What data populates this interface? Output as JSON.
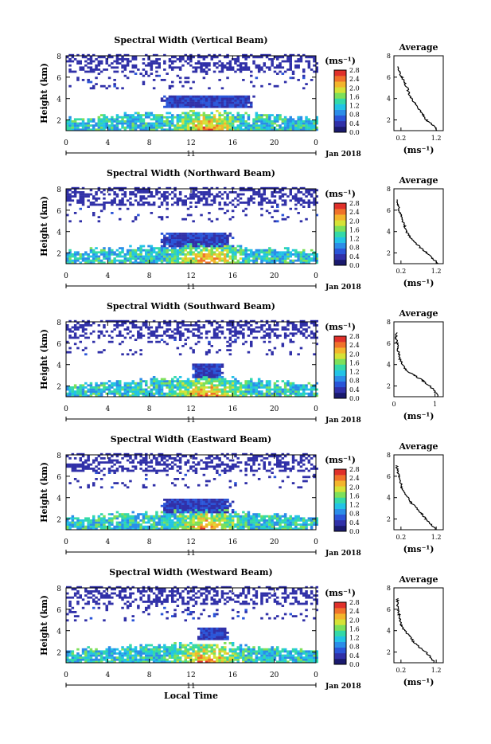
{
  "page": {
    "xlabel_bottom": "Local Time",
    "date_label": "Jan 2018",
    "day_label": "11",
    "ylabel": "Height (km)",
    "colorbar_unit": "(ms⁻¹)",
    "avg_title": "Average",
    "avg_unit": "(ms⁻¹)"
  },
  "colors": {
    "scale": [
      "#1a1a6e",
      "#3030a8",
      "#2a55d8",
      "#2b8de8",
      "#22c3e6",
      "#34d9a8",
      "#7de05a",
      "#d6e236",
      "#f3b52c",
      "#f0722a",
      "#e0302a"
    ],
    "data_dark_blue": "#3a3fb0"
  },
  "chart_data": [
    {
      "type": "heatmap",
      "title": "Spectral Width (Vertical Beam)",
      "ylabel": "Height (km)",
      "xticks": [
        "0",
        "4",
        "8",
        "12",
        "16",
        "20",
        "0"
      ],
      "yticks": [
        "2",
        "4",
        "6",
        "8"
      ],
      "xlim": [
        0,
        24
      ],
      "ylim": [
        1,
        8
      ],
      "colorbar": {
        "ticks": [
          "2.8",
          "2.4",
          "2.0",
          "1.6",
          "1.2",
          "0.8",
          "0.4",
          "0.0"
        ],
        "range": [
          0,
          2.8
        ]
      },
      "cloud_band": {
        "x": [
          9,
          18
        ],
        "y": [
          3.0,
          4.2
        ]
      },
      "profile": {
        "title": "Average",
        "xticks": [
          "0.2",
          "1.2"
        ],
        "yticks": [
          "2",
          "4",
          "6",
          "8"
        ],
        "xlim": [
          0,
          1.4
        ],
        "height": [
          1.0,
          1.5,
          2.0,
          2.5,
          3.0,
          3.5,
          4.0,
          4.5,
          5.0,
          5.5,
          6.0,
          6.5,
          7.0
        ],
        "value": [
          1.22,
          1.1,
          0.92,
          0.82,
          0.7,
          0.6,
          0.5,
          0.42,
          0.38,
          0.3,
          0.22,
          0.15,
          0.1
        ]
      }
    },
    {
      "type": "heatmap",
      "title": "Spectral Width (Northward Beam)",
      "ylabel": "Height (km)",
      "xticks": [
        "0",
        "4",
        "8",
        "12",
        "16",
        "20",
        "0"
      ],
      "yticks": [
        "2",
        "4",
        "6",
        "8"
      ],
      "xlim": [
        0,
        24
      ],
      "ylim": [
        1,
        8
      ],
      "colorbar": {
        "ticks": [
          "2.8",
          "2.4",
          "2.0",
          "1.6",
          "1.2",
          "0.8",
          "0.4",
          "0.0"
        ],
        "range": [
          0,
          2.8
        ]
      },
      "cloud_band": {
        "x": [
          9,
          16
        ],
        "y": [
          2.5,
          3.8
        ]
      },
      "profile": {
        "title": "Average",
        "xticks": [
          "0.2",
          "1.2"
        ],
        "yticks": [
          "2",
          "4",
          "6",
          "8"
        ],
        "xlim": [
          0,
          1.4
        ],
        "height": [
          1.0,
          1.5,
          2.0,
          2.5,
          3.0,
          3.5,
          4.0,
          4.5,
          5.0,
          5.5,
          6.0,
          6.5,
          7.0
        ],
        "value": [
          1.25,
          1.1,
          0.95,
          0.75,
          0.6,
          0.45,
          0.35,
          0.3,
          0.25,
          0.2,
          0.15,
          0.1,
          0.08
        ]
      }
    },
    {
      "type": "heatmap",
      "title": "Spectral Width (Southward Beam)",
      "ylabel": "Height (km)",
      "xticks": [
        "0",
        "4",
        "8",
        "12",
        "16",
        "20",
        "0"
      ],
      "yticks": [
        "2",
        "4",
        "6",
        "8"
      ],
      "xlim": [
        0,
        24
      ],
      "ylim": [
        1,
        8
      ],
      "colorbar": {
        "ticks": [
          "2.8",
          "2.4",
          "2.0",
          "1.6",
          "1.2",
          "0.8",
          "0.4",
          "0.0"
        ],
        "range": [
          0,
          2.8
        ]
      },
      "cloud_band": {
        "x": [
          12,
          15
        ],
        "y": [
          2.5,
          4.0
        ]
      },
      "profile": {
        "title": "Average",
        "xticks": [
          "0",
          "1"
        ],
        "yticks": [
          "2",
          "4",
          "6",
          "8"
        ],
        "xlim": [
          0,
          1.2
        ],
        "height": [
          1.0,
          1.5,
          2.0,
          2.5,
          3.0,
          3.5,
          4.0,
          4.5,
          5.0,
          5.5,
          6.0,
          6.5,
          7.0
        ],
        "value": [
          1.08,
          1.0,
          0.88,
          0.7,
          0.5,
          0.3,
          0.2,
          0.15,
          0.12,
          0.1,
          0.08,
          0.05,
          0.05
        ]
      }
    },
    {
      "type": "heatmap",
      "title": "Spectral Width (Eastward Beam)",
      "ylabel": "Height (km)",
      "xticks": [
        "0",
        "4",
        "8",
        "12",
        "16",
        "20",
        "0"
      ],
      "yticks": [
        "2",
        "4",
        "6",
        "8"
      ],
      "xlim": [
        0,
        24
      ],
      "ylim": [
        1,
        8
      ],
      "colorbar": {
        "ticks": [
          "2.8",
          "2.4",
          "2.0",
          "1.6",
          "1.2",
          "0.8",
          "0.4",
          "0.0"
        ],
        "range": [
          0,
          2.8
        ]
      },
      "cloud_band": {
        "x": [
          9,
          16
        ],
        "y": [
          2.5,
          3.8
        ]
      },
      "profile": {
        "title": "Average",
        "xticks": [
          "0.2",
          "1.2"
        ],
        "yticks": [
          "2",
          "4",
          "6",
          "8"
        ],
        "xlim": [
          0,
          1.4
        ],
        "height": [
          1.0,
          1.5,
          2.0,
          2.5,
          3.0,
          3.5,
          4.0,
          4.5,
          5.0,
          5.5,
          6.0,
          6.5,
          7.0
        ],
        "value": [
          1.2,
          1.05,
          0.9,
          0.78,
          0.65,
          0.5,
          0.4,
          0.3,
          0.22,
          0.18,
          0.15,
          0.1,
          0.08
        ]
      }
    },
    {
      "type": "heatmap",
      "title": "Spectral Width (Westward Beam)",
      "ylabel": "Height (km)",
      "xticks": [
        "0",
        "4",
        "8",
        "12",
        "16",
        "20",
        "0"
      ],
      "yticks": [
        "2",
        "4",
        "6",
        "8"
      ],
      "xlim": [
        0,
        24
      ],
      "ylim": [
        1,
        8
      ],
      "colorbar": {
        "ticks": [
          "2.8",
          "2.4",
          "2.0",
          "1.6",
          "1.2",
          "0.8",
          "0.4",
          "0.0"
        ],
        "range": [
          0,
          2.8
        ]
      },
      "cloud_band": {
        "x": [
          12.5,
          15.5
        ],
        "y": [
          3.0,
          4.2
        ]
      },
      "profile": {
        "title": "Average",
        "xticks": [
          "0.2",
          "1.2"
        ],
        "yticks": [
          "2",
          "4",
          "6",
          "8"
        ],
        "xlim": [
          0,
          1.4
        ],
        "height": [
          1.0,
          1.5,
          2.0,
          2.5,
          3.0,
          3.5,
          4.0,
          4.5,
          5.0,
          5.5,
          6.0,
          6.5,
          7.0
        ],
        "value": [
          1.15,
          1.05,
          0.9,
          0.7,
          0.55,
          0.45,
          0.3,
          0.22,
          0.18,
          0.15,
          0.12,
          0.1,
          0.1
        ]
      }
    }
  ]
}
